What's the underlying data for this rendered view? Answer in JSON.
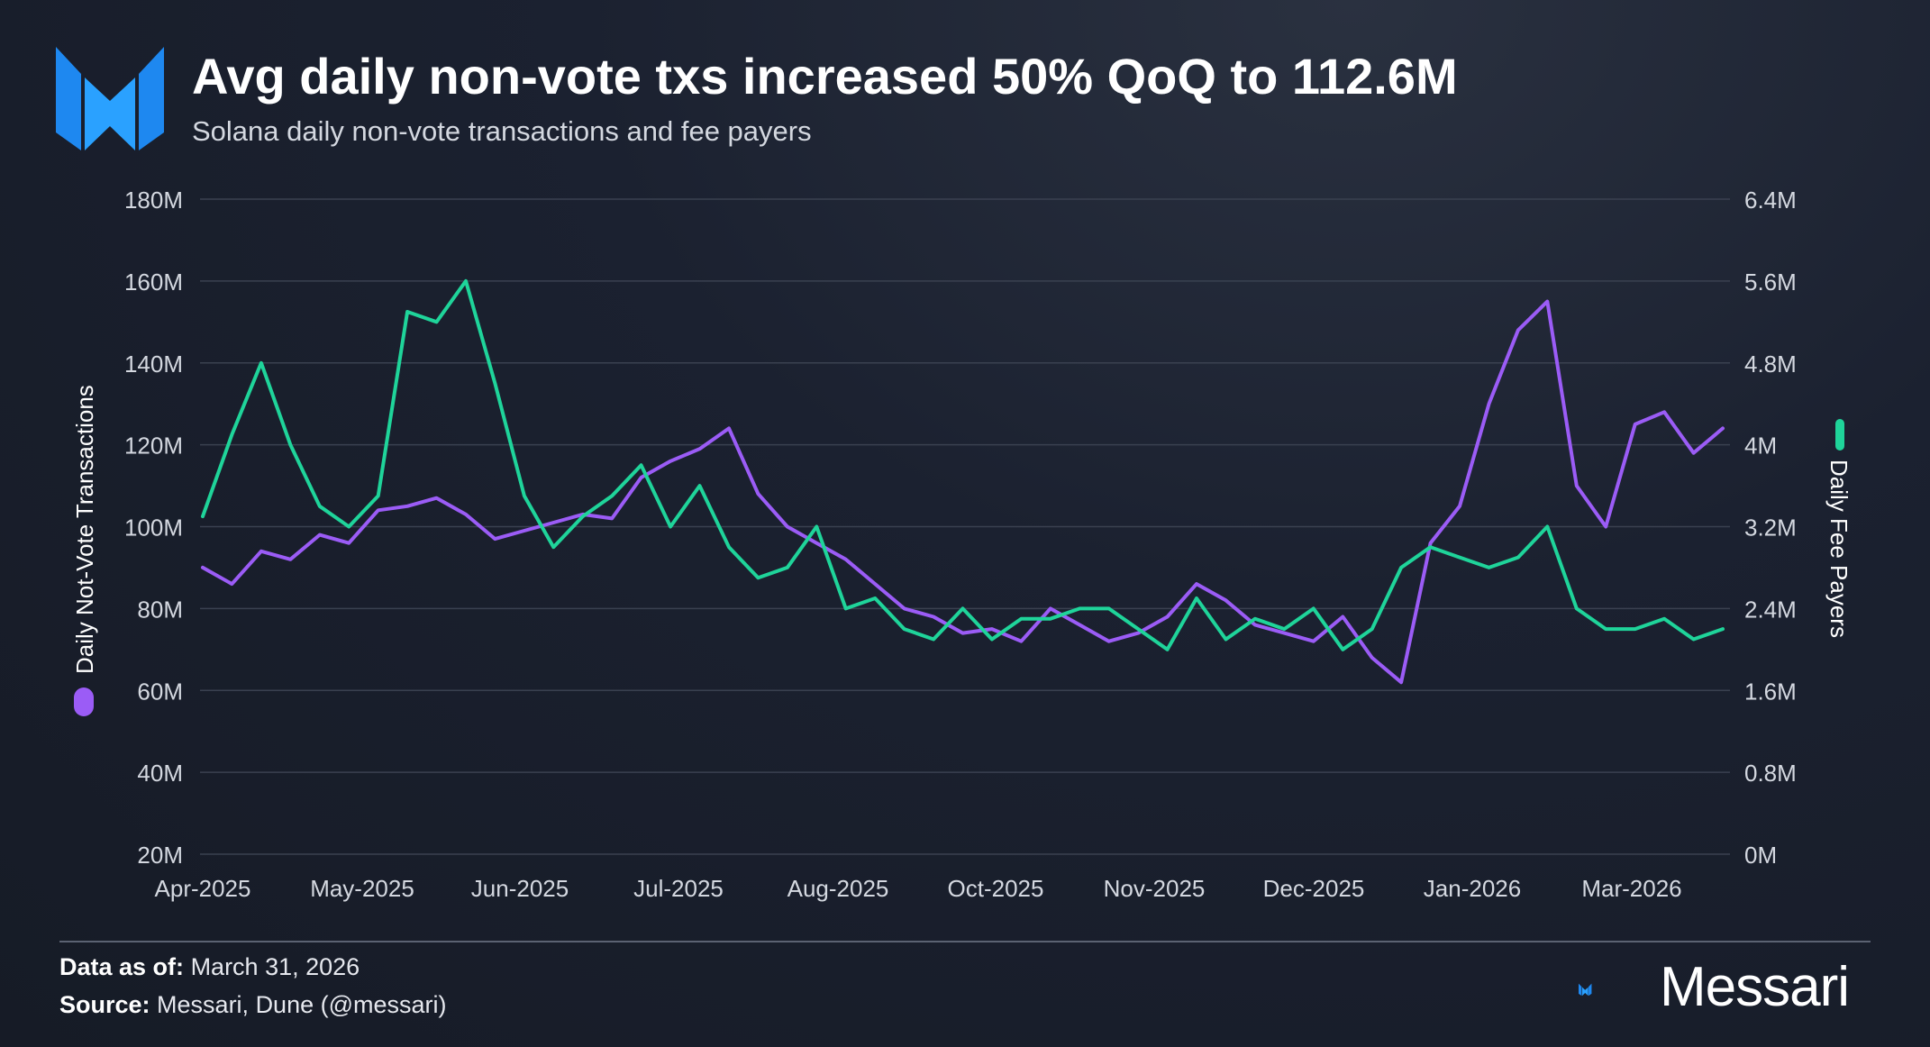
{
  "header": {
    "title": "Avg daily non-vote txs increased 50% QoQ to 112.6M",
    "subtitle": "Solana daily non-vote transactions and fee payers"
  },
  "footer": {
    "data_as_of_label": "Data as of:",
    "data_as_of_value": "March 31, 2026",
    "source_label": "Source:",
    "source_value": "Messari, Dune (@messari)",
    "brand": "Messari"
  },
  "chart_data": {
    "type": "line",
    "grid": true,
    "x_tick_labels": [
      "Apr-2025",
      "May-2025",
      "Jun-2025",
      "Jul-2025",
      "Aug-2025",
      "Oct-2025",
      "Nov-2025",
      "Dec-2025",
      "Jan-2026",
      "Mar-2026"
    ],
    "y_left": {
      "label": "Daily Not-Vote Transactions",
      "ticks": [
        "180M",
        "160M",
        "140M",
        "120M",
        "100M",
        "80M",
        "60M",
        "40M",
        "20M"
      ],
      "range": [
        20,
        180
      ],
      "unit": "M"
    },
    "y_right": {
      "label": "Daily Fee Payers",
      "ticks": [
        "6.4M",
        "5.6M",
        "4.8M",
        "4M",
        "3.2M",
        "2.4M",
        "1.6M",
        "0.8M",
        "0M"
      ],
      "range": [
        0,
        6.4
      ],
      "unit": "M"
    },
    "series": [
      {
        "name": "Daily Not-Vote Transactions",
        "axis": "left",
        "color": "#9b5cf6",
        "x": [
          "2025-04-01",
          "2025-04-08",
          "2025-04-15",
          "2025-04-22",
          "2025-04-29",
          "2025-05-06",
          "2025-05-13",
          "2025-05-20",
          "2025-05-27",
          "2025-06-03",
          "2025-06-10",
          "2025-06-17",
          "2025-06-24",
          "2025-07-01",
          "2025-07-08",
          "2025-07-15",
          "2025-07-22",
          "2025-07-29",
          "2025-08-05",
          "2025-08-12",
          "2025-08-19",
          "2025-08-26",
          "2025-09-02",
          "2025-09-09",
          "2025-09-16",
          "2025-09-23",
          "2025-09-30",
          "2025-10-07",
          "2025-10-14",
          "2025-10-21",
          "2025-10-28",
          "2025-11-04",
          "2025-11-11",
          "2025-11-18",
          "2025-11-25",
          "2025-12-02",
          "2025-12-09",
          "2025-12-16",
          "2025-12-23",
          "2025-12-30",
          "2026-01-06",
          "2026-01-13",
          "2026-01-20",
          "2026-01-27",
          "2026-02-03",
          "2026-02-10",
          "2026-02-17",
          "2026-02-24",
          "2026-03-03",
          "2026-03-10",
          "2026-03-17",
          "2026-03-24",
          "2026-03-31"
        ],
        "values": [
          90,
          86,
          94,
          92,
          98,
          96,
          104,
          105,
          107,
          103,
          97,
          99,
          101,
          103,
          102,
          112,
          116,
          119,
          124,
          108,
          100,
          96,
          92,
          86,
          80,
          78,
          74,
          75,
          72,
          80,
          76,
          72,
          74,
          78,
          86,
          82,
          76,
          74,
          72,
          78,
          68,
          62,
          96,
          105,
          130,
          148,
          155,
          110,
          100,
          125,
          128,
          118,
          124
        ]
      },
      {
        "name": "Daily Fee Payers",
        "axis": "right",
        "color": "#1fd49a",
        "x": [
          "2025-04-01",
          "2025-04-08",
          "2025-04-15",
          "2025-04-22",
          "2025-04-29",
          "2025-05-06",
          "2025-05-13",
          "2025-05-20",
          "2025-05-27",
          "2025-06-03",
          "2025-06-10",
          "2025-06-17",
          "2025-06-24",
          "2025-07-01",
          "2025-07-08",
          "2025-07-15",
          "2025-07-22",
          "2025-07-29",
          "2025-08-05",
          "2025-08-12",
          "2025-08-19",
          "2025-08-26",
          "2025-09-02",
          "2025-09-09",
          "2025-09-16",
          "2025-09-23",
          "2025-09-30",
          "2025-10-07",
          "2025-10-14",
          "2025-10-21",
          "2025-10-28",
          "2025-11-04",
          "2025-11-11",
          "2025-11-18",
          "2025-11-25",
          "2025-12-02",
          "2025-12-09",
          "2025-12-16",
          "2025-12-23",
          "2025-12-30",
          "2026-01-06",
          "2026-01-13",
          "2026-01-20",
          "2026-01-27",
          "2026-02-03",
          "2026-02-10",
          "2026-02-17",
          "2026-02-24",
          "2026-03-03",
          "2026-03-10",
          "2026-03-17",
          "2026-03-24",
          "2026-03-31"
        ],
        "values": [
          3.3,
          4.1,
          4.8,
          4.0,
          3.4,
          3.2,
          3.5,
          5.3,
          5.2,
          5.6,
          4.6,
          3.5,
          3.0,
          3.3,
          3.5,
          3.8,
          3.2,
          3.6,
          3.0,
          2.7,
          2.8,
          3.2,
          2.4,
          2.5,
          2.2,
          2.1,
          2.4,
          2.1,
          2.3,
          2.3,
          2.4,
          2.4,
          2.2,
          2.0,
          2.5,
          2.1,
          2.3,
          2.2,
          2.4,
          2.0,
          2.2,
          2.8,
          3.0,
          2.9,
          2.8,
          2.9,
          3.2,
          2.4,
          2.2,
          2.2,
          2.3,
          2.1,
          2.2
        ]
      }
    ]
  }
}
